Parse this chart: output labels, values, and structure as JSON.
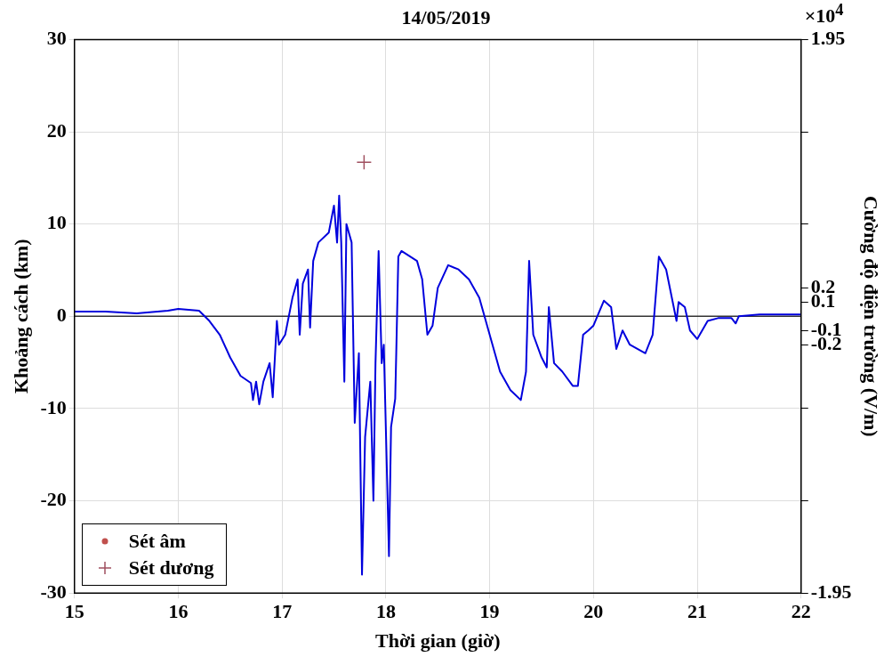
{
  "chart_data": {
    "type": "line",
    "title": "14/05/2019",
    "xlabel": "Thời gian (giờ)",
    "ylabel": "Khoảng cách (km)",
    "y2label": "Cường độ điện trường (V/m)",
    "annotations": [
      "×10$^{4}$"
    ],
    "xlim": [
      15,
      22
    ],
    "xticks": [
      15,
      16,
      17,
      18,
      19,
      20,
      21,
      22
    ],
    "ylim": [
      -30,
      30
    ],
    "yticks": [
      -30,
      -20,
      -10,
      0,
      10,
      20,
      30
    ],
    "y2lim": [
      -1.95,
      1.95
    ],
    "y2ticks": [
      -1.95,
      {
        "value": -1.3,
        "label": null
      },
      {
        "value": -0.65,
        "label": null
      },
      -0.2,
      -0.1,
      0.1,
      0.2,
      {
        "value": 0.65,
        "label": null
      },
      {
        "value": 1.3,
        "label": null
      },
      1.95
    ],
    "grid": true,
    "legend": "bottom left",
    "ref_lines": [
      {
        "axis": "y",
        "value": 0,
        "color": "#333333"
      }
    ],
    "series": [
      {
        "axis": "y2",
        "color": "#0000dd",
        "marker": "none",
        "x": [
          15.0,
          15.3,
          15.6,
          15.9,
          16.0,
          16.2,
          16.3,
          16.4,
          16.5,
          16.6,
          16.7,
          16.72,
          16.75,
          16.78,
          16.82,
          16.88,
          16.91,
          16.95,
          16.97,
          17.03,
          17.1,
          17.15,
          17.17,
          17.2,
          17.25,
          17.27,
          17.3,
          17.35,
          17.45,
          17.5,
          17.53,
          17.55,
          17.57,
          17.6,
          17.62,
          17.67,
          17.7,
          17.74,
          17.77,
          17.8,
          17.85,
          17.88,
          17.9,
          17.93,
          17.96,
          17.98,
          18.03,
          18.05,
          18.09,
          18.1,
          18.12,
          18.15,
          18.3,
          18.35,
          18.4,
          18.45,
          18.5,
          18.6,
          18.7,
          18.8,
          18.9,
          19.0,
          19.1,
          19.2,
          19.3,
          19.35,
          19.38,
          19.42,
          19.5,
          19.55,
          19.57,
          19.62,
          19.7,
          19.8,
          19.85,
          19.9,
          19.95,
          20.0,
          20.1,
          20.17,
          20.22,
          20.28,
          20.35,
          20.5,
          20.57,
          20.63,
          20.7,
          20.8,
          20.82,
          20.88,
          20.93,
          21.0,
          21.1,
          21.2,
          21.33,
          21.37,
          21.4,
          21.6,
          21.8,
          22.0
        ],
        "values": [
          0.033,
          0.033,
          0.02,
          0.039,
          0.052,
          0.039,
          -0.033,
          -0.13,
          -0.29,
          -0.42,
          -0.47,
          -0.59,
          -0.46,
          -0.62,
          -0.46,
          -0.33,
          -0.57,
          -0.033,
          -0.2,
          -0.13,
          0.13,
          0.26,
          -0.13,
          0.23,
          0.33,
          -0.08,
          0.39,
          0.52,
          0.59,
          0.78,
          0.52,
          0.85,
          0.52,
          -0.46,
          0.65,
          0.52,
          -0.75,
          -0.26,
          -1.82,
          -0.85,
          -0.46,
          -1.3,
          -0.33,
          0.46,
          -0.33,
          -0.2,
          -1.69,
          -0.78,
          -0.58,
          -0.26,
          0.42,
          0.46,
          0.39,
          0.26,
          -0.13,
          -0.065,
          0.2,
          0.36,
          0.33,
          0.26,
          0.13,
          -0.13,
          -0.39,
          -0.52,
          -0.59,
          -0.39,
          0.39,
          -0.13,
          -0.29,
          -0.36,
          0.065,
          -0.33,
          -0.39,
          -0.49,
          -0.49,
          -0.13,
          -0.1,
          -0.065,
          0.11,
          0.065,
          -0.23,
          -0.1,
          -0.2,
          -0.26,
          -0.13,
          0.42,
          0.33,
          -0.033,
          0.1,
          0.065,
          -0.1,
          -0.16,
          -0.033,
          -0.013,
          -0.013,
          -0.05,
          0.0,
          0.013,
          0.013,
          0.013
        ]
      },
      {
        "type": "scatter",
        "name": "Sét âm",
        "color": "#c0504d",
        "marker": "circle"
      },
      {
        "type": "scatter",
        "name": "Sét dương",
        "color": "#a05060",
        "marker": "cross",
        "x": [
          17.79
        ],
        "values": [
          16.7
        ]
      }
    ]
  }
}
